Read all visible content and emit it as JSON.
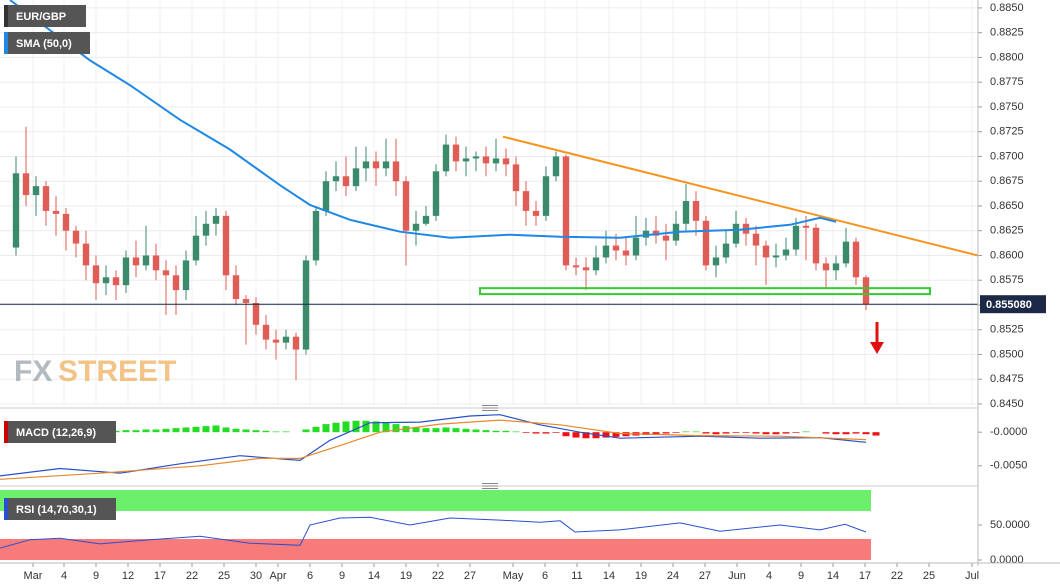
{
  "chart_data": [
    {
      "type": "candlestick",
      "title": "EUR/GBP",
      "open": [
        0.8608,
        0.8683,
        0.8661,
        0.867,
        0.8645,
        0.8642,
        0.8625,
        0.8612,
        0.859,
        0.8572,
        0.8578,
        0.857,
        0.8598,
        0.859,
        0.86,
        0.8585,
        0.858,
        0.8565,
        0.8595,
        0.862,
        0.8632,
        0.864,
        0.858,
        0.8556,
        0.8552,
        0.853,
        0.8515,
        0.8512,
        0.8518,
        0.8505,
        0.8595,
        0.8645,
        0.8675,
        0.868,
        0.867,
        0.8688,
        0.8695,
        0.8688,
        0.8695,
        0.8675,
        0.8625,
        0.8632,
        0.864,
        0.8685,
        0.8712,
        0.8695,
        0.8698,
        0.87,
        0.8693,
        0.8698,
        0.8692,
        0.8665,
        0.8645,
        0.864,
        0.868,
        0.87,
        0.859,
        0.8588,
        0.8585,
        0.8598,
        0.861,
        0.8605,
        0.86,
        0.8618,
        0.8625,
        0.862,
        0.8615,
        0.8632,
        0.8655,
        0.8635,
        0.859,
        0.8598,
        0.8612,
        0.8632,
        0.8622,
        0.861,
        0.8598,
        0.86,
        0.8606,
        0.863,
        0.8628,
        0.8592,
        0.8585,
        0.8592,
        0.8614,
        0.8578
      ],
      "high": [
        0.87,
        0.873,
        0.868,
        0.8675,
        0.866,
        0.8648,
        0.863,
        0.8625,
        0.86,
        0.859,
        0.8585,
        0.8605,
        0.8615,
        0.863,
        0.8612,
        0.8595,
        0.859,
        0.8605,
        0.864,
        0.8645,
        0.8648,
        0.8645,
        0.859,
        0.856,
        0.8558,
        0.854,
        0.8525,
        0.8525,
        0.8522,
        0.86,
        0.865,
        0.8685,
        0.8695,
        0.87,
        0.871,
        0.871,
        0.8705,
        0.8718,
        0.8718,
        0.868,
        0.8645,
        0.865,
        0.8692,
        0.8722,
        0.872,
        0.871,
        0.8705,
        0.871,
        0.8718,
        0.8708,
        0.87,
        0.8675,
        0.8655,
        0.869,
        0.8705,
        0.8702,
        0.8598,
        0.8598,
        0.861,
        0.8625,
        0.8622,
        0.8618,
        0.864,
        0.8638,
        0.864,
        0.8632,
        0.8645,
        0.8672,
        0.8665,
        0.864,
        0.861,
        0.8625,
        0.8645,
        0.8638,
        0.863,
        0.8615,
        0.8612,
        0.8618,
        0.8638,
        0.864,
        0.8632,
        0.8598,
        0.86,
        0.8628,
        0.8618,
        0.858
      ],
      "low": [
        0.86,
        0.865,
        0.864,
        0.863,
        0.862,
        0.8605,
        0.8598,
        0.8575,
        0.8555,
        0.856,
        0.8555,
        0.8562,
        0.8578,
        0.8585,
        0.8575,
        0.854,
        0.854,
        0.8555,
        0.859,
        0.861,
        0.862,
        0.8565,
        0.855,
        0.851,
        0.852,
        0.8505,
        0.8495,
        0.8505,
        0.8474,
        0.85,
        0.859,
        0.864,
        0.8665,
        0.866,
        0.8665,
        0.8675,
        0.867,
        0.868,
        0.866,
        0.859,
        0.861,
        0.863,
        0.8635,
        0.868,
        0.8685,
        0.868,
        0.8685,
        0.868,
        0.8685,
        0.868,
        0.865,
        0.863,
        0.863,
        0.8635,
        0.8675,
        0.8585,
        0.858,
        0.8565,
        0.858,
        0.8592,
        0.8595,
        0.859,
        0.8595,
        0.861,
        0.8612,
        0.8595,
        0.861,
        0.8625,
        0.862,
        0.8585,
        0.8578,
        0.8592,
        0.8608,
        0.861,
        0.859,
        0.857,
        0.8588,
        0.8595,
        0.86,
        0.8595,
        0.8585,
        0.8568,
        0.8575,
        0.8588,
        0.857,
        0.8545
      ],
      "close": [
        0.8683,
        0.8661,
        0.867,
        0.8645,
        0.8642,
        0.8625,
        0.8612,
        0.859,
        0.8572,
        0.8578,
        0.857,
        0.8598,
        0.859,
        0.86,
        0.8585,
        0.858,
        0.8565,
        0.8595,
        0.862,
        0.8632,
        0.864,
        0.858,
        0.8556,
        0.8552,
        0.853,
        0.8515,
        0.8512,
        0.8518,
        0.8505,
        0.8595,
        0.8645,
        0.8675,
        0.868,
        0.867,
        0.8688,
        0.8695,
        0.8688,
        0.8695,
        0.8675,
        0.8625,
        0.8632,
        0.864,
        0.8685,
        0.8712,
        0.8695,
        0.8698,
        0.87,
        0.8693,
        0.8698,
        0.8692,
        0.8665,
        0.8645,
        0.864,
        0.868,
        0.87,
        0.859,
        0.8588,
        0.8585,
        0.8598,
        0.861,
        0.8605,
        0.86,
        0.8618,
        0.8625,
        0.862,
        0.8615,
        0.8632,
        0.8655,
        0.8635,
        0.859,
        0.8598,
        0.8612,
        0.8632,
        0.8622,
        0.861,
        0.8598,
        0.86,
        0.8606,
        0.863,
        0.8628,
        0.8592,
        0.8585,
        0.8592,
        0.8614,
        0.8578,
        0.85508
      ],
      "up_color": "#3b8a6c",
      "down_color": "#e05c57",
      "ylim": [
        0.8449,
        0.8858
      ],
      "yticks": [
        {
          "value": 0.885,
          "label": "0.8850"
        },
        {
          "value": 0.8825,
          "label": "0.8825"
        },
        {
          "value": 0.88,
          "label": "0.8800"
        },
        {
          "value": 0.8775,
          "label": "0.8775"
        },
        {
          "value": 0.875,
          "label": "0.8750"
        },
        {
          "value": 0.8725,
          "label": "0.8725"
        },
        {
          "value": 0.87,
          "label": "0.8700"
        },
        {
          "value": 0.8675,
          "label": "0.8675"
        },
        {
          "value": 0.865,
          "label": "0.8650"
        },
        {
          "value": 0.8625,
          "label": "0.8625"
        },
        {
          "value": 0.86,
          "label": "0.8600"
        },
        {
          "value": 0.8575,
          "label": "0.8575"
        },
        {
          "value": 0.855,
          "label": "0.8550"
        },
        {
          "value": 0.8525,
          "label": "0.8525"
        },
        {
          "value": 0.85,
          "label": "0.8500"
        },
        {
          "value": 0.8475,
          "label": "0.8475"
        },
        {
          "value": 0.845,
          "label": "0.8450"
        }
      ],
      "xlim": [
        -1.6,
        96.2
      ],
      "xticks": [
        {
          "value": 1.7,
          "label": "Mar"
        },
        {
          "value": 4.8,
          "label": "4"
        },
        {
          "value": 8,
          "label": "9"
        },
        {
          "value": 11.2,
          "label": "12"
        },
        {
          "value": 14.4,
          "label": "17"
        },
        {
          "value": 17.6,
          "label": "22"
        },
        {
          "value": 20.8,
          "label": "25"
        },
        {
          "value": 24,
          "label": "30"
        },
        {
          "value": 26.2,
          "label": "Apr"
        },
        {
          "value": 29.4,
          "label": "6"
        },
        {
          "value": 32.6,
          "label": "9"
        },
        {
          "value": 35.8,
          "label": "14"
        },
        {
          "value": 39,
          "label": "19"
        },
        {
          "value": 42.2,
          "label": "22"
        },
        {
          "value": 45.4,
          "label": "27"
        },
        {
          "value": 49.7,
          "label": "May"
        },
        {
          "value": 52.9,
          "label": "6"
        },
        {
          "value": 56.1,
          "label": "11"
        },
        {
          "value": 59.3,
          "label": "14"
        },
        {
          "value": 62.5,
          "label": "19"
        },
        {
          "value": 65.7,
          "label": "24"
        },
        {
          "value": 68.9,
          "label": "27"
        },
        {
          "value": 72.1,
          "label": "Jun"
        },
        {
          "value": 75.3,
          "label": "4"
        },
        {
          "value": 78.5,
          "label": "9"
        },
        {
          "value": 81.7,
          "label": "14"
        },
        {
          "value": 84.9,
          "label": "17"
        },
        {
          "value": 88.1,
          "label": "22"
        },
        {
          "value": 91.3,
          "label": "25"
        },
        {
          "value": 95.6,
          "label": "Jul"
        }
      ],
      "grid": true,
      "sma": {
        "name": "SMA (50,0)",
        "color": "#1e88e5",
        "x": [
          -0.6,
          7.4,
          11.4,
          16.4,
          21.4,
          26.4,
          29.4,
          33.4,
          38.4,
          43.4,
          49.4,
          54.4,
          60.4,
          66.4,
          72.4,
          77.4,
          80.4,
          82
        ],
        "values": [
          0.8858,
          0.8797,
          0.8772,
          0.8737,
          0.8707,
          0.8671,
          0.8651,
          0.8636,
          0.8624,
          0.8618,
          0.8621,
          0.8619,
          0.8618,
          0.8624,
          0.8626,
          0.8631,
          0.8638,
          0.8634
        ]
      },
      "trendline": {
        "color": "#f7941d",
        "x": [
          48.7,
          96.2
        ],
        "values": [
          0.872,
          0.86
        ]
      },
      "support": {
        "color": "#33cc33",
        "x": [
          46.4,
          91.4
        ],
        "values": [
          0.8567,
          0.8561
        ]
      },
      "last_price": {
        "value": 0.85508,
        "label": "0.855080"
      }
    },
    {
      "type": "macd",
      "title": "MACD (12,26,9)",
      "ylim": [
        -0.0077,
        0.003
      ],
      "yticks": [
        {
          "value": 0,
          "label": "-0.0000"
        },
        {
          "value": -0.005,
          "label": "-0.0050"
        }
      ],
      "histogram": {
        "up_color": "#22dd22",
        "down_color": "#ee1111",
        "values": [
          0,
          0,
          0,
          0,
          0,
          0,
          0,
          0,
          0,
          0,
          0.0002,
          0.0003,
          0.0003,
          0.0004,
          0.0004,
          0.0005,
          0.0006,
          0.0007,
          0.0008,
          0.0009,
          0.001,
          0.0007,
          0.0005,
          0.0004,
          0.0003,
          0.0002,
          0.0001,
          0.0001,
          0,
          0.0004,
          0.0008,
          0.0012,
          0.0014,
          0.0016,
          0.0017,
          0.0017,
          0.0016,
          0.0014,
          0.0012,
          0.0009,
          0.0007,
          0.0006,
          0.0006,
          0.0007,
          0.0006,
          0.0005,
          0.0004,
          0.0003,
          0.0002,
          0.0002,
          0.0001,
          -0.0001,
          -0.0002,
          -0.0002,
          -0.0001,
          -0.0006,
          -0.0008,
          -0.0009,
          -0.0009,
          -0.0008,
          -0.0007,
          -0.0006,
          -0.0005,
          -0.0004,
          -0.0003,
          -0.0002,
          -0.0001,
          0.0001,
          0.0001,
          -0.0002,
          -0.0003,
          -0.0002,
          -0.0001,
          -0.0001,
          -0.0002,
          -0.0003,
          -0.0003,
          -0.0002,
          -0.0001,
          0.0001,
          0,
          -0.0002,
          -0.0003,
          -0.0003,
          -0.0002,
          -0.0003,
          -0.0005
        ]
      },
      "series": [
        {
          "color": "#2750c8",
          "x": [
            -1.6,
            4.4,
            10.4,
            16.4,
            22.4,
            28.4,
            31.4,
            35.4,
            40.4,
            45.4,
            48.4,
            52.4,
            56.4,
            60.4,
            68.4,
            74.4,
            80.4,
            85
          ],
          "values": [
            -0.0065,
            -0.0054,
            -0.0061,
            -0.0047,
            -0.0035,
            -0.0042,
            -0.0012,
            0.0014,
            0.0015,
            0.0024,
            0.0026,
            0.0011,
            0,
            -0.0009,
            -0.0006,
            -0.0009,
            -0.0008,
            -0.0015
          ]
        },
        {
          "color": "#e8872a",
          "x": [
            -1.6,
            8.4,
            18.4,
            24.4,
            28.4,
            32.4,
            36.4,
            42.4,
            48.4,
            54.4,
            60.4,
            68.4,
            76.4,
            85
          ],
          "values": [
            -0.007,
            -0.0061,
            -0.005,
            -0.0039,
            -0.0039,
            -0.002,
            0,
            0.0012,
            0.0018,
            0.0011,
            -0.0002,
            -0.0005,
            -0.0006,
            -0.0011
          ]
        }
      ]
    },
    {
      "type": "rsi",
      "title": "RSI (14,70,30,1)",
      "ylim": [
        0,
        100
      ],
      "yticks": [
        {
          "value": 50,
          "label": "50.0000"
        },
        {
          "value": 0,
          "label": "0.0000"
        }
      ],
      "overbought": 70,
      "oversold": 30,
      "overbought_color": "#6cf06c",
      "oversold_color": "#f77b7b",
      "series": [
        {
          "color": "#2a4fd0",
          "x": [
            -1.6,
            1.4,
            4.4,
            8.4,
            13.4,
            18.4,
            23.4,
            28.4,
            29.4,
            32.4,
            35.4,
            39.4,
            43.4,
            48.4,
            52.4,
            54.4,
            55.9,
            60.4,
            66.4,
            70.4,
            76.4,
            80.4,
            82.9,
            85
          ],
          "values": [
            17,
            29,
            31,
            23,
            29,
            34,
            24,
            21,
            50,
            60,
            61,
            50,
            60,
            57,
            54,
            56,
            40,
            43,
            53,
            41,
            50,
            43,
            51,
            40
          ]
        }
      ]
    }
  ],
  "watermark": {
    "fx": "FX",
    "street": "STREET"
  }
}
